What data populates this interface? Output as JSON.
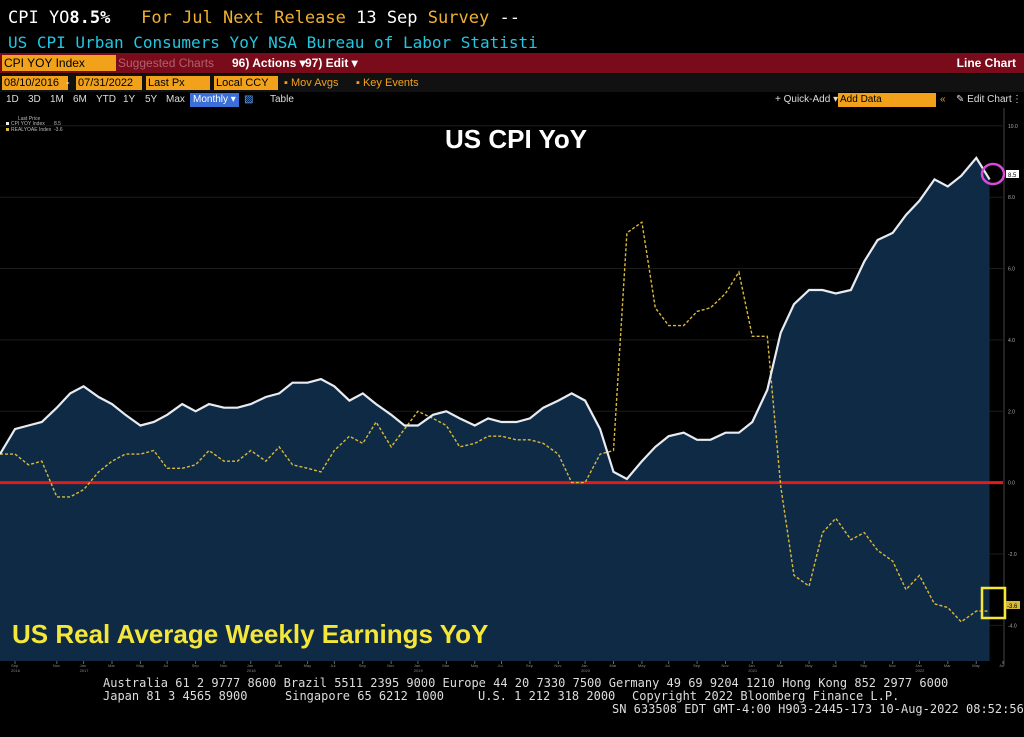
{
  "header": {
    "ticker_label": "CPI YO",
    "last_value": "8.5%",
    "for_label": "For",
    "for_period": "Jul",
    "next_release_label": "Next Release",
    "next_release_date": "13 Sep",
    "survey_label": "Survey",
    "survey_value": "--",
    "description": "US CPI Urban Consumers YoY NSA Bureau of Labor Statisti"
  },
  "toolbar": {
    "field": "CPI YOY Index",
    "suggested": "Suggested Charts",
    "actions": "96) Actions ▾",
    "edit": "97) Edit ▾",
    "chart_type": "Line Chart",
    "start_date": "08/10/2016",
    "end_date": "07/31/2022",
    "price_type": "Last Px",
    "currency": "Local CCY",
    "mov_avgs": "Mov Avgs",
    "key_events": "Key Events",
    "periods": [
      "1D",
      "3D",
      "1M",
      "6M",
      "YTD",
      "1Y",
      "5Y",
      "Max"
    ],
    "frequency": "Monthly ▾",
    "table": "Table",
    "quick_add": "+ Quick-Add ▾",
    "add_data": "Add Data",
    "edit_chart": "Edit Chart"
  },
  "legend": {
    "header": "Last Price",
    "items": [
      {
        "name": "CPI YOY Index",
        "value": "8.5"
      },
      {
        "name": "REALYOAE Index",
        "value": "-3.6"
      }
    ]
  },
  "colors": {
    "cpi_line": "#e8ecf2",
    "cpi_fill": "#0e2a44",
    "earnings_line": "#d9b93a",
    "zero_line": "#e01b1b",
    "cpi_title": "#ffffff",
    "earnings_title": "#f5e63a",
    "circle": "#d84ad8",
    "box": "#f5e63a"
  },
  "chart_data": {
    "type": "line",
    "title": "US CPI YoY",
    "annotation": "US Real Average Weekly Earnings YoY",
    "xlim": [
      2016.58,
      2022.58
    ],
    "ylim": [
      -5,
      10.5
    ],
    "yticks": [
      10,
      8,
      6,
      4,
      2,
      0,
      -2,
      -4
    ],
    "ytick_labels": [
      "10.0",
      "8.0",
      "6.0",
      "4.0",
      "2.0",
      "0.0",
      "-2.0",
      "-4.0"
    ],
    "last_value_labels": {
      "cpi": "8.5",
      "earnings": "-3.6"
    },
    "x_ticks": [
      {
        "t": 2016.67,
        "label": "Sep"
      },
      {
        "t": 2016.92,
        "label": "Nov"
      },
      {
        "t": 2017.08,
        "label": "Jan"
      },
      {
        "t": 2017.25,
        "label": "Mar"
      },
      {
        "t": 2017.42,
        "label": "May"
      },
      {
        "t": 2017.58,
        "label": "Jul"
      },
      {
        "t": 2017.75,
        "label": "Sep"
      },
      {
        "t": 2017.92,
        "label": "Nov"
      },
      {
        "t": 2018.08,
        "label": "Jan"
      },
      {
        "t": 2018.25,
        "label": "Mar"
      },
      {
        "t": 2018.42,
        "label": "May"
      },
      {
        "t": 2018.58,
        "label": "Jul"
      },
      {
        "t": 2018.75,
        "label": "Sep"
      },
      {
        "t": 2018.92,
        "label": "Nov"
      },
      {
        "t": 2019.08,
        "label": "Jan"
      },
      {
        "t": 2019.25,
        "label": "Mar"
      },
      {
        "t": 2019.42,
        "label": "May"
      },
      {
        "t": 2019.58,
        "label": "Jul"
      },
      {
        "t": 2019.75,
        "label": "Sep"
      },
      {
        "t": 2019.92,
        "label": "Nov"
      },
      {
        "t": 2020.08,
        "label": "Jan"
      },
      {
        "t": 2020.25,
        "label": "Mar"
      },
      {
        "t": 2020.42,
        "label": "May"
      },
      {
        "t": 2020.58,
        "label": "Jul"
      },
      {
        "t": 2020.75,
        "label": "Sep"
      },
      {
        "t": 2020.92,
        "label": "Nov"
      },
      {
        "t": 2021.08,
        "label": "Jan"
      },
      {
        "t": 2021.25,
        "label": "Mar"
      },
      {
        "t": 2021.42,
        "label": "May"
      },
      {
        "t": 2021.58,
        "label": "Jul"
      },
      {
        "t": 2021.75,
        "label": "Sep"
      },
      {
        "t": 2021.92,
        "label": "Nov"
      },
      {
        "t": 2022.08,
        "label": "Jan"
      },
      {
        "t": 2022.25,
        "label": "Mar"
      },
      {
        "t": 2022.42,
        "label": "May"
      },
      {
        "t": 2022.58,
        "label": "Jul"
      }
    ],
    "year_labels": [
      {
        "t": 2016.67,
        "label": "2016"
      },
      {
        "t": 2017.08,
        "label": "2017"
      },
      {
        "t": 2018.08,
        "label": "2018"
      },
      {
        "t": 2019.08,
        "label": "2019"
      },
      {
        "t": 2020.08,
        "label": "2020"
      },
      {
        "t": 2021.08,
        "label": "2021"
      },
      {
        "t": 2022.08,
        "label": "2022"
      }
    ],
    "series": [
      {
        "name": "CPI YOY Index",
        "style": "solid-area",
        "points": [
          [
            2016.58,
            0.8
          ],
          [
            2016.67,
            1.5
          ],
          [
            2016.75,
            1.6
          ],
          [
            2016.83,
            1.7
          ],
          [
            2016.92,
            2.1
          ],
          [
            2017.0,
            2.5
          ],
          [
            2017.08,
            2.7
          ],
          [
            2017.17,
            2.4
          ],
          [
            2017.25,
            2.2
          ],
          [
            2017.33,
            1.9
          ],
          [
            2017.42,
            1.6
          ],
          [
            2017.5,
            1.7
          ],
          [
            2017.58,
            1.9
          ],
          [
            2017.67,
            2.2
          ],
          [
            2017.75,
            2.0
          ],
          [
            2017.83,
            2.2
          ],
          [
            2017.92,
            2.1
          ],
          [
            2018.0,
            2.1
          ],
          [
            2018.08,
            2.2
          ],
          [
            2018.17,
            2.4
          ],
          [
            2018.25,
            2.5
          ],
          [
            2018.33,
            2.8
          ],
          [
            2018.42,
            2.8
          ],
          [
            2018.5,
            2.9
          ],
          [
            2018.58,
            2.7
          ],
          [
            2018.67,
            2.3
          ],
          [
            2018.75,
            2.5
          ],
          [
            2018.83,
            2.2
          ],
          [
            2018.92,
            1.9
          ],
          [
            2019.0,
            1.6
          ],
          [
            2019.08,
            1.6
          ],
          [
            2019.17,
            1.9
          ],
          [
            2019.25,
            2.0
          ],
          [
            2019.33,
            1.8
          ],
          [
            2019.42,
            1.6
          ],
          [
            2019.5,
            1.8
          ],
          [
            2019.58,
            1.7
          ],
          [
            2019.67,
            1.7
          ],
          [
            2019.75,
            1.8
          ],
          [
            2019.83,
            2.1
          ],
          [
            2019.92,
            2.3
          ],
          [
            2020.0,
            2.5
          ],
          [
            2020.08,
            2.3
          ],
          [
            2020.17,
            1.5
          ],
          [
            2020.25,
            0.3
          ],
          [
            2020.33,
            0.1
          ],
          [
            2020.42,
            0.6
          ],
          [
            2020.5,
            1.0
          ],
          [
            2020.58,
            1.3
          ],
          [
            2020.67,
            1.4
          ],
          [
            2020.75,
            1.2
          ],
          [
            2020.83,
            1.2
          ],
          [
            2020.92,
            1.4
          ],
          [
            2021.0,
            1.4
          ],
          [
            2021.08,
            1.7
          ],
          [
            2021.17,
            2.6
          ],
          [
            2021.25,
            4.2
          ],
          [
            2021.33,
            5.0
          ],
          [
            2021.42,
            5.4
          ],
          [
            2021.5,
            5.4
          ],
          [
            2021.58,
            5.3
          ],
          [
            2021.67,
            5.4
          ],
          [
            2021.75,
            6.2
          ],
          [
            2021.83,
            6.8
          ],
          [
            2021.92,
            7.0
          ],
          [
            2022.0,
            7.5
          ],
          [
            2022.08,
            7.9
          ],
          [
            2022.17,
            8.5
          ],
          [
            2022.25,
            8.3
          ],
          [
            2022.33,
            8.6
          ],
          [
            2022.42,
            9.1
          ],
          [
            2022.5,
            8.5
          ]
        ]
      },
      {
        "name": "REALYOAE Index",
        "style": "dashed",
        "points": [
          [
            2016.58,
            0.8
          ],
          [
            2016.67,
            0.8
          ],
          [
            2016.75,
            0.5
          ],
          [
            2016.83,
            0.6
          ],
          [
            2016.92,
            -0.4
          ],
          [
            2017.0,
            -0.4
          ],
          [
            2017.08,
            -0.2
          ],
          [
            2017.17,
            0.3
          ],
          [
            2017.25,
            0.6
          ],
          [
            2017.33,
            0.8
          ],
          [
            2017.42,
            0.8
          ],
          [
            2017.5,
            0.9
          ],
          [
            2017.58,
            0.4
          ],
          [
            2017.67,
            0.4
          ],
          [
            2017.75,
            0.5
          ],
          [
            2017.83,
            0.9
          ],
          [
            2017.92,
            0.6
          ],
          [
            2018.0,
            0.6
          ],
          [
            2018.08,
            0.9
          ],
          [
            2018.17,
            0.6
          ],
          [
            2018.25,
            1.0
          ],
          [
            2018.33,
            0.5
          ],
          [
            2018.42,
            0.4
          ],
          [
            2018.5,
            0.3
          ],
          [
            2018.58,
            0.9
          ],
          [
            2018.67,
            1.3
          ],
          [
            2018.75,
            1.1
          ],
          [
            2018.83,
            1.7
          ],
          [
            2018.92,
            1.0
          ],
          [
            2019.0,
            1.5
          ],
          [
            2019.08,
            2.0
          ],
          [
            2019.17,
            1.8
          ],
          [
            2019.25,
            1.6
          ],
          [
            2019.33,
            1.0
          ],
          [
            2019.42,
            1.1
          ],
          [
            2019.5,
            1.3
          ],
          [
            2019.58,
            1.3
          ],
          [
            2019.67,
            1.2
          ],
          [
            2019.75,
            1.2
          ],
          [
            2019.83,
            1.1
          ],
          [
            2019.92,
            0.8
          ],
          [
            2020.0,
            0.0
          ],
          [
            2020.08,
            0.0
          ],
          [
            2020.17,
            0.8
          ],
          [
            2020.25,
            0.9
          ],
          [
            2020.33,
            7.0
          ],
          [
            2020.42,
            7.3
          ],
          [
            2020.5,
            4.9
          ],
          [
            2020.58,
            4.4
          ],
          [
            2020.67,
            4.4
          ],
          [
            2020.75,
            4.8
          ],
          [
            2020.83,
            4.9
          ],
          [
            2020.92,
            5.3
          ],
          [
            2021.0,
            5.9
          ],
          [
            2021.08,
            4.1
          ],
          [
            2021.17,
            4.1
          ],
          [
            2021.25,
            -0.1
          ],
          [
            2021.33,
            -2.6
          ],
          [
            2021.42,
            -2.9
          ],
          [
            2021.5,
            -1.4
          ],
          [
            2021.58,
            -1.0
          ],
          [
            2021.67,
            -1.6
          ],
          [
            2021.75,
            -1.4
          ],
          [
            2021.83,
            -1.9
          ],
          [
            2021.92,
            -2.2
          ],
          [
            2022.0,
            -3.0
          ],
          [
            2022.08,
            -2.6
          ],
          [
            2022.17,
            -3.4
          ],
          [
            2022.25,
            -3.5
          ],
          [
            2022.33,
            -3.9
          ],
          [
            2022.42,
            -3.6
          ],
          [
            2022.5,
            -3.6
          ]
        ]
      }
    ]
  },
  "footer": {
    "line1": "Australia 61 2 9777 8600 Brazil 5511 2395 9000 Europe 44 20 7330 7500 Germany 49 69 9204 1210 Hong Kong 852 2977 6000",
    "line2_left": "Japan 81 3 4565 8900",
    "line2_mid": "Singapore 65 6212 1000",
    "line2_us": "U.S. 1 212 318 2000",
    "line2_copy": "Copyright 2022 Bloomberg Finance L.P.",
    "line3": "SN 633508 EDT  GMT-4:00 H903-2445-173 10-Aug-2022 08:52:56"
  }
}
